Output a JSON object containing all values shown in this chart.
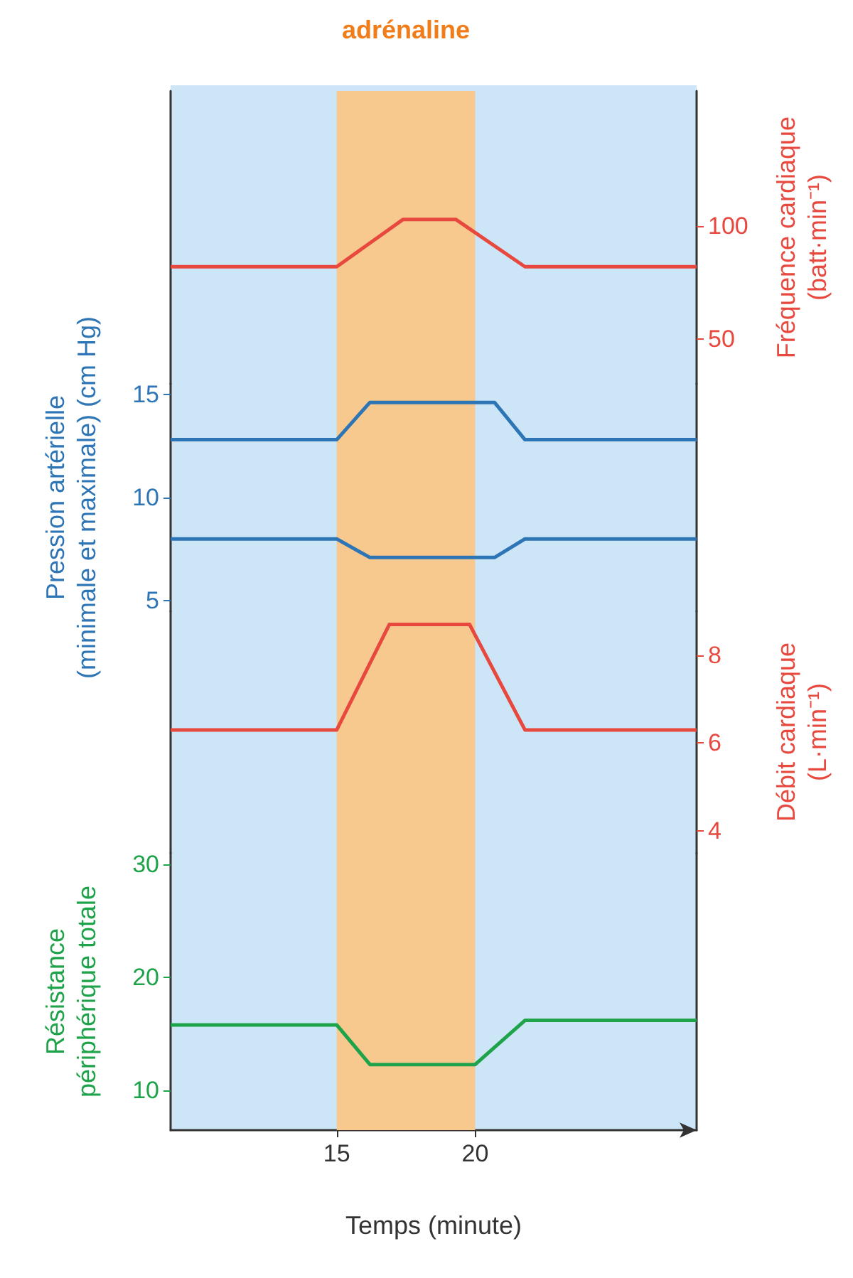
{
  "chart_data": [
    {
      "type": "line",
      "y2label": "Fréquence cardiaque\n(batt·min⁻¹)",
      "xlim": [
        9,
        28
      ],
      "y2lim": [
        30,
        160
      ],
      "y2ticks": [
        50,
        100
      ],
      "tick_labels": "y",
      "grid": false,
      "bands": [
        {
          "axis": "x",
          "from": 15,
          "to": 20,
          "label": "adrénaline",
          "color": "#f8c98e"
        }
      ],
      "series": [
        {
          "color": "#e8493f",
          "axis": "y2",
          "x": [
            9,
            15,
            17.4,
            19.3,
            21.8,
            28
          ],
          "values": [
            82,
            82,
            103,
            103,
            82,
            82
          ]
        }
      ]
    },
    {
      "type": "line",
      "ylabel": "Pression artérielle\n(minimale et maximale) (cm Hg)",
      "xlim": [
        9,
        28
      ],
      "ylim": [
        4.5,
        15.5
      ],
      "yticks": [
        5,
        10,
        15
      ],
      "tick_labels": "y",
      "grid": false,
      "bands": [
        {
          "axis": "x",
          "from": 15,
          "to": 20,
          "color": "#f8c98e"
        }
      ],
      "series": [
        {
          "color": "#2e75b6",
          "x": [
            9,
            15,
            16.2,
            20.7,
            21.8,
            28
          ],
          "values": [
            12.8,
            12.8,
            14.6,
            14.6,
            12.8,
            12.8
          ]
        },
        {
          "color": "#2e75b6",
          "x": [
            9,
            15,
            16.2,
            20.7,
            21.8,
            28
          ],
          "values": [
            8,
            8,
            7.1,
            7.1,
            8,
            8
          ]
        }
      ]
    },
    {
      "type": "line",
      "y2label": "Débit cardiaque\n(L·min⁻¹)",
      "xlim": [
        9,
        28
      ],
      "y2lim": [
        3.5,
        9
      ],
      "y2ticks": [
        4,
        6,
        8
      ],
      "tick_labels": "y",
      "grid": false,
      "bands": [
        {
          "axis": "x",
          "from": 15,
          "to": 20,
          "color": "#f8c98e"
        }
      ],
      "series": [
        {
          "color": "#e8493f",
          "axis": "y2",
          "x": [
            9,
            15,
            16.9,
            19.8,
            21.8,
            28
          ],
          "values": [
            6.3,
            6.3,
            8.7,
            8.7,
            6.3,
            6.3
          ]
        }
      ]
    },
    {
      "type": "line",
      "ylabel": "Résistance\npériphérique totale",
      "xlabel": "Temps (minute)",
      "xlim": [
        9,
        28
      ],
      "xticks": [
        15,
        20
      ],
      "ylim": [
        6.5,
        31
      ],
      "yticks": [
        10,
        20,
        30
      ],
      "grid": false,
      "bands": [
        {
          "axis": "x",
          "from": 15,
          "to": 20,
          "color": "#f8c98e"
        }
      ],
      "series": [
        {
          "color": "#1fa34a",
          "x": [
            9,
            15,
            16.2,
            20,
            21.8,
            28
          ],
          "values": [
            15.8,
            15.8,
            12.3,
            12.3,
            16.2,
            16.2
          ]
        }
      ]
    }
  ]
}
